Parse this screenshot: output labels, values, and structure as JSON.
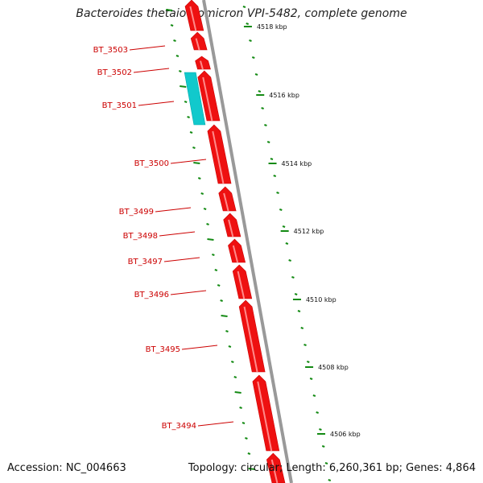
{
  "title": "Bacteroides thetaiotaomicron VPI-5482, complete genome",
  "footer": {
    "accession": "Accession: NC_004663",
    "summary": "Topology: circular; Length: 6,260,361 bp; Genes: 4,864"
  },
  "colors": {
    "forward_gene": "#ee1111",
    "highlight_gene": "#11c9cc",
    "backbone": "#888888",
    "tick": "#138a13",
    "label": "#cc0000"
  },
  "kbp_ticks": [
    {
      "label": "4518 kbp",
      "bp": 4518000
    },
    {
      "label": "4516 kbp",
      "bp": 4516000
    },
    {
      "label": "4514 kbp",
      "bp": 4514000
    },
    {
      "label": "4512 kbp",
      "bp": 4512000
    },
    {
      "label": "4510 kbp",
      "bp": 4510000
    },
    {
      "label": "4508 kbp",
      "bp": 4508000
    },
    {
      "label": "4506 kbp",
      "bp": 4506000
    }
  ],
  "genes": [
    {
      "name": "BT_3503",
      "strand": "+"
    },
    {
      "name": "BT_3502",
      "strand": "+"
    },
    {
      "name": "BT_3501",
      "strand": "-",
      "highlight": true
    },
    {
      "name": "BT_3500",
      "strand": "+"
    },
    {
      "name": "BT_3499",
      "strand": "+"
    },
    {
      "name": "BT_3498",
      "strand": "+"
    },
    {
      "name": "BT_3497",
      "strand": "+"
    },
    {
      "name": "BT_3496",
      "strand": "+"
    },
    {
      "name": "BT_3495",
      "strand": "+"
    },
    {
      "name": "BT_3494",
      "strand": "+"
    }
  ]
}
